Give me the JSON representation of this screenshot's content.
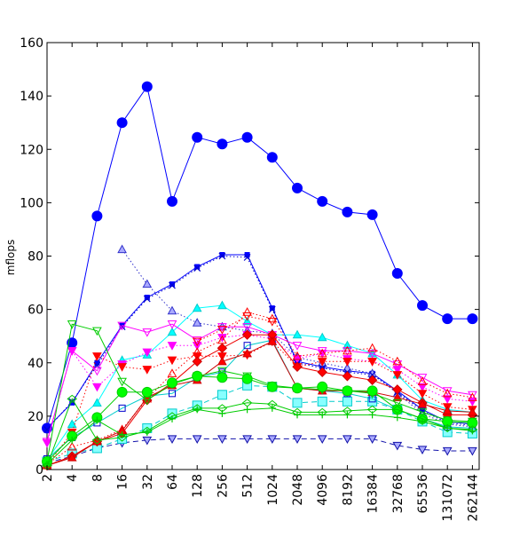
{
  "chart_data": {
    "type": "line",
    "title": "",
    "xlabel": "",
    "ylabel": "mflops",
    "ylim": [
      0,
      160
    ],
    "y_ticks": [
      "0",
      "20",
      "40",
      "60",
      "80",
      "100",
      "120",
      "140",
      "160"
    ],
    "categories": [
      "2",
      "4",
      "8",
      "16",
      "32",
      "64",
      "128",
      "256",
      "512",
      "1024",
      "2048",
      "4096",
      "8192",
      "16384",
      "32768",
      "65536",
      "131072",
      "262144"
    ],
    "grid": false,
    "legend": "none",
    "series": [
      {
        "color": "#0000ff",
        "dash": "solid",
        "marker": "circle-big",
        "values": [
          15.5,
          47.5,
          95,
          130,
          143.5,
          100.5,
          124.5,
          122,
          124.5,
          117,
          105.5,
          100.5,
          96.5,
          95.5,
          73.5,
          61.5,
          56.5,
          56.5
        ]
      },
      {
        "color": "#0000ff",
        "dash": "solid",
        "marker": "square-small",
        "values": [
          15.5,
          25,
          40,
          54,
          64.5,
          69.5,
          76,
          80.5,
          80.5,
          60.5,
          40.5,
          38.5,
          37,
          36,
          29.5,
          22.5,
          18,
          17
        ]
      },
      {
        "color": "#3333cc",
        "dash": "dotted",
        "marker": "triangle-up-lilac",
        "values": [
          null,
          null,
          null,
          82.5,
          69.5,
          59.5,
          55,
          53.5,
          52,
          51,
          42,
          40,
          38,
          36,
          28.5,
          21,
          17,
          16
        ]
      },
      {
        "color": "#0000cc",
        "dash": "dotted",
        "marker": "x",
        "values": [
          15,
          25.5,
          39,
          53.5,
          64,
          69,
          75.5,
          80,
          79.5,
          60,
          40,
          38,
          36.5,
          35.5,
          29,
          22,
          17.5,
          16.5
        ]
      },
      {
        "color": "#1111aa",
        "dash": "dashed",
        "marker": "triangle-down-lilac",
        "values": [
          2.5,
          5,
          8,
          10,
          11,
          11.5,
          11.5,
          11.5,
          11.5,
          11.5,
          11.5,
          11.5,
          11.5,
          11.5,
          9,
          7.5,
          7,
          7
        ]
      },
      {
        "color": "#00ffff",
        "dash": "solid",
        "marker": "triangle-up-cyan",
        "values": [
          3.5,
          17,
          25,
          41,
          43,
          51.5,
          60.5,
          61.5,
          55.5,
          50.5,
          50.5,
          49.5,
          46.5,
          43.5,
          35.5,
          26,
          22.5,
          21.5
        ]
      },
      {
        "color": "#00cccc",
        "dash": "dashed",
        "marker": "square-cyan-big",
        "values": [
          3,
          6,
          8,
          11.5,
          15.5,
          21,
          24,
          28,
          31.5,
          31,
          25,
          25.5,
          25.5,
          25.5,
          22.5,
          18,
          14,
          13.5
        ]
      },
      {
        "color": "#00cccc",
        "dash": "solid",
        "marker": "square-cyan-small",
        "values": [
          4,
          12,
          17.5,
          23,
          27.5,
          28.5,
          34.5,
          36.5,
          46.5,
          48.5,
          30.5,
          29.5,
          28.5,
          26.5,
          22.5,
          19,
          16,
          15.5
        ]
      },
      {
        "color": "#ff00ff",
        "dash": "solid",
        "marker": "triangle-down-magenta",
        "values": [
          10.5,
          44.5,
          37,
          54,
          51.5,
          54.5,
          48.5,
          53.5,
          53.5,
          50.5,
          46.5,
          44.5,
          44.5,
          43.5,
          39.5,
          34.5,
          29.5,
          28
        ]
      },
      {
        "color": "#ff00ff",
        "dash": "dotted",
        "marker": "triangle-down-filled",
        "values": [
          10,
          44.5,
          31,
          39.5,
          44,
          46.5,
          46.5,
          49.5,
          50.5,
          49,
          41.5,
          43.5,
          41.5,
          40.5,
          37.5,
          31,
          26.5,
          25.5
        ]
      },
      {
        "color": "#ff0000",
        "dash": "dotted",
        "marker": "triangle-down-red",
        "values": [
          1.5,
          14,
          42.5,
          38.5,
          37.5,
          41,
          42.5,
          42.5,
          43,
          48,
          38.5,
          40.5,
          40.5,
          40.5,
          35.5,
          28.5,
          23.5,
          22.5
        ]
      },
      {
        "color": "#ff0000",
        "dash": "dotted",
        "marker": "triangle-up-open",
        "values": [
          2,
          8.5,
          11,
          15,
          26.5,
          36,
          44,
          48.5,
          59,
          56.5,
          42.5,
          43.5,
          44.5,
          45.5,
          40.5,
          33,
          28.5,
          27
        ]
      },
      {
        "color": "#ff0000",
        "dash": "dotted",
        "marker": "triangle-down-open",
        "values": [
          null,
          null,
          null,
          null,
          null,
          null,
          48,
          52.5,
          57.5,
          55.5,
          null,
          null,
          null,
          null,
          null,
          null,
          null,
          null
        ]
      },
      {
        "color": "#ee0000",
        "dash": "solid",
        "marker": "diamond",
        "values": [
          1.5,
          5,
          10.5,
          13.5,
          26,
          32.5,
          40.5,
          45.5,
          50.5,
          50.5,
          38.5,
          36.5,
          35,
          33.5,
          30,
          25,
          20.5,
          20.5
        ]
      },
      {
        "color": "#cc0000",
        "dash": "solid",
        "marker": "triangle-up-red",
        "values": [
          1.5,
          4.5,
          10.5,
          14.5,
          27,
          31.5,
          33.5,
          40.5,
          43.5,
          48,
          30.5,
          29.5,
          29.5,
          29,
          27,
          24.5,
          22,
          21.5
        ]
      },
      {
        "color": "#00cc00",
        "dash": "solid",
        "marker": "triangle-down-green",
        "values": [
          3,
          54.5,
          52,
          33,
          26,
          32,
          35,
          37,
          35,
          31.5,
          30.5,
          30,
          29.5,
          28.5,
          25,
          21.5,
          18.5,
          18
        ]
      },
      {
        "color": "#00cc00",
        "dash": "solid",
        "marker": "circle-green",
        "values": [
          3,
          12.5,
          19.5,
          29,
          29,
          32.5,
          35,
          34.5,
          34,
          31,
          30.5,
          31,
          29.5,
          29.5,
          22.5,
          19,
          18,
          17.5
        ]
      },
      {
        "color": "#00cc00",
        "dash": "solid",
        "marker": "diamond-open-green",
        "values": [
          1.5,
          26.5,
          11,
          12,
          14.5,
          20,
          23,
          23,
          25,
          24.5,
          21.5,
          21.5,
          22,
          22.5,
          22.5,
          19,
          15.5,
          15
        ]
      },
      {
        "color": "#00cc00",
        "dash": "solid",
        "marker": "plus",
        "values": [
          2,
          11,
          18.5,
          13,
          14,
          19,
          22.5,
          21,
          22.5,
          23,
          20.5,
          20.5,
          20.5,
          20.5,
          19.5,
          18,
          15.5,
          14.5
        ]
      }
    ]
  }
}
